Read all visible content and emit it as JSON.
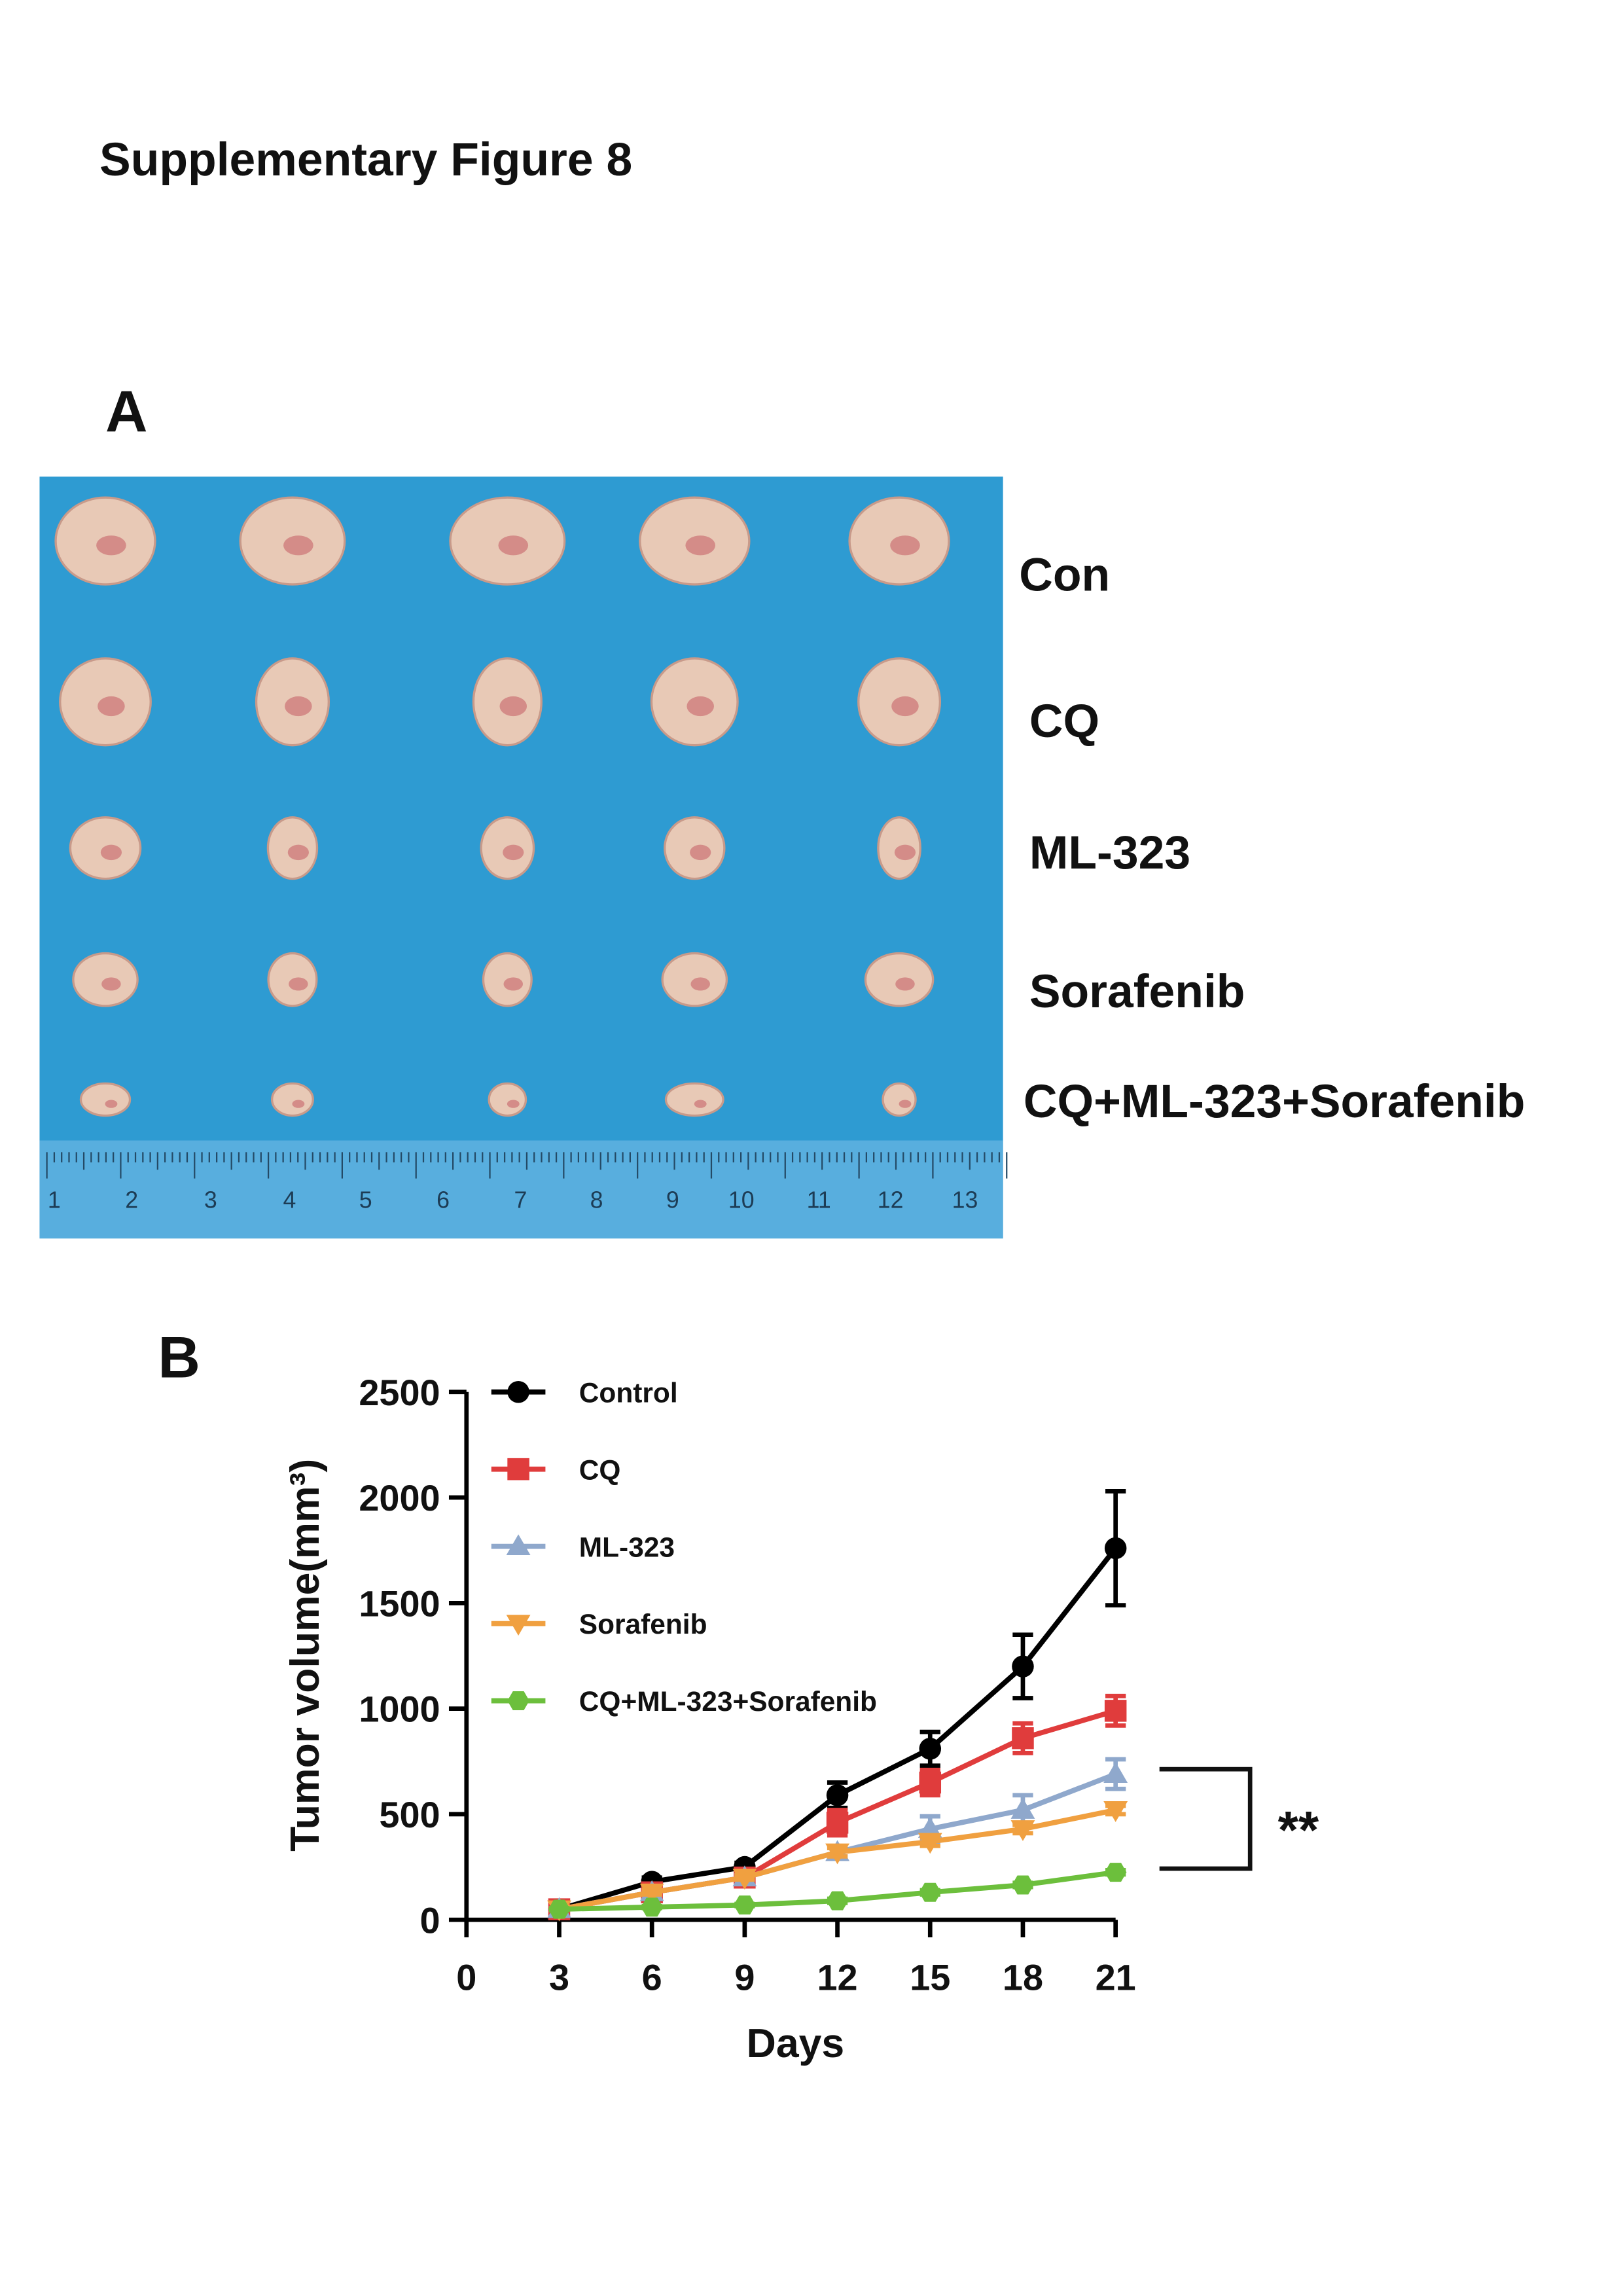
{
  "title": "Supplementary Figure 8",
  "panel_a": {
    "label": "A",
    "row_labels": [
      "Con",
      "CQ",
      "ML-323",
      "Sorafenib",
      "CQ+ML-323+Sorafenib"
    ],
    "ruler_numbers": [
      "1",
      "2",
      "3",
      "4",
      "5",
      "6",
      "7",
      "8",
      "9",
      "10",
      "11",
      "12",
      "13"
    ]
  },
  "chart_data": {
    "type": "line",
    "panel_label": "B",
    "x_label": "Days",
    "y_label": "Tumor volume(mm³)",
    "x": [
      3,
      6,
      9,
      12,
      15,
      18,
      21
    ],
    "xlim": [
      0,
      21
    ],
    "xticks": [
      0,
      3,
      6,
      9,
      12,
      15,
      18,
      21
    ],
    "ylim": [
      0,
      2500
    ],
    "yticks": [
      0,
      500,
      1000,
      1500,
      2000,
      2500
    ],
    "series": [
      {
        "name": "Control",
        "color": "#000000",
        "marker": "circle",
        "values": [
          50,
          180,
          250,
          590,
          810,
          1200,
          1760
        ],
        "errors": [
          10,
          20,
          20,
          60,
          80,
          150,
          270
        ]
      },
      {
        "name": "CQ",
        "color": "#e03c3c",
        "marker": "square",
        "values": [
          50,
          130,
          200,
          460,
          650,
          860,
          990
        ],
        "errors": [
          10,
          15,
          15,
          60,
          60,
          70,
          70
        ]
      },
      {
        "name": "ML-323",
        "color": "#8fa8cc",
        "marker": "triangle-up",
        "values": [
          50,
          130,
          200,
          320,
          430,
          520,
          690
        ],
        "errors": [
          5,
          10,
          10,
          20,
          60,
          70,
          70
        ]
      },
      {
        "name": "Sorafenib",
        "color": "#f0a040",
        "marker": "triangle-down",
        "values": [
          50,
          130,
          200,
          320,
          370,
          430,
          520
        ],
        "errors": [
          5,
          10,
          10,
          20,
          20,
          20,
          20
        ]
      },
      {
        "name": "CQ+ML-323+Sorafenib",
        "color": "#6cbf3c",
        "marker": "hexagon",
        "values": [
          50,
          60,
          70,
          90,
          130,
          165,
          225
        ],
        "errors": [
          5,
          5,
          5,
          10,
          10,
          10,
          10
        ]
      }
    ],
    "annotation": "**"
  }
}
